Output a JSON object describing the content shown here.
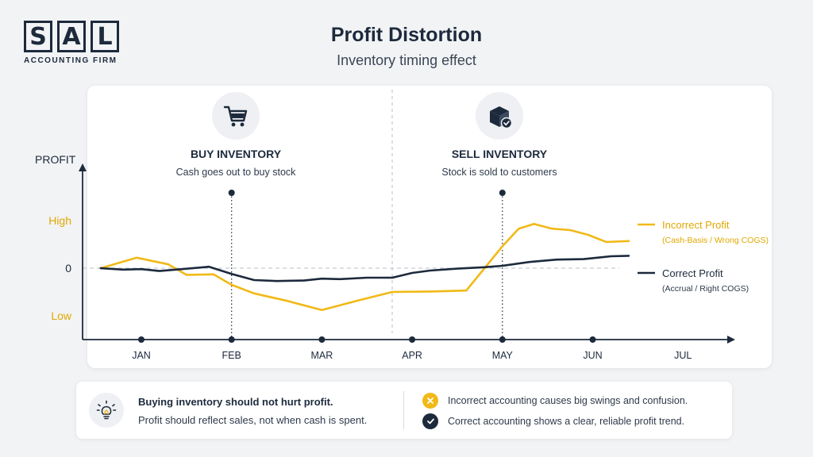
{
  "brand": {
    "letters": [
      "S",
      "A",
      "L"
    ],
    "subtitle": "ACCOUNTING FIRM"
  },
  "header": {
    "title": "Profit Distortion",
    "subtitle": "Inventory timing effect"
  },
  "colors": {
    "incorrect": "#f1b917",
    "correct": "#1c2a3c",
    "navy": "#1c2a3c"
  },
  "chart_data": {
    "type": "line",
    "ylabel": "PROFIT",
    "y_tick_labels": [
      "High",
      "0",
      "Low"
    ],
    "y_tick_values": [
      1,
      0,
      -1
    ],
    "ylim": [
      -1.2,
      1.6
    ],
    "xlim": [
      0.55,
      7.6
    ],
    "categories": [
      "JAN",
      "FEB",
      "MAR",
      "APR",
      "MAY",
      "JUN",
      "JUL"
    ],
    "category_x": [
      1,
      2,
      3,
      4,
      5,
      6,
      7
    ],
    "series": [
      {
        "name": "Incorrect Profit",
        "sublabel": "(Cash-Basis / Wrong COGS)",
        "color": "#f1b917",
        "x": [
          0.55,
          0.95,
          1.3,
          1.5,
          1.8,
          2.0,
          2.25,
          2.6,
          3.0,
          3.4,
          3.78,
          4.2,
          4.6,
          5.0,
          5.18,
          5.35,
          5.55,
          5.75,
          5.95,
          6.15,
          6.4
        ],
        "y": [
          0,
          0.22,
          0.08,
          -0.14,
          -0.13,
          -0.35,
          -0.53,
          -0.68,
          -0.88,
          -0.68,
          -0.5,
          -0.49,
          -0.47,
          0.46,
          0.83,
          0.93,
          0.83,
          0.8,
          0.7,
          0.55,
          0.57
        ]
      },
      {
        "name": "Correct Profit",
        "sublabel": "(Accrual / Right COGS)",
        "color": "#1c2a3c",
        "x": [
          0.55,
          0.8,
          1.0,
          1.2,
          1.45,
          1.75,
          2.0,
          2.25,
          2.5,
          2.8,
          3.0,
          3.2,
          3.5,
          3.78,
          4.0,
          4.2,
          4.5,
          4.8,
          5.0,
          5.3,
          5.6,
          5.9,
          6.2,
          6.4
        ],
        "y": [
          0,
          -0.03,
          -0.02,
          -0.06,
          -0.02,
          0.03,
          -0.12,
          -0.25,
          -0.27,
          -0.26,
          -0.22,
          -0.23,
          -0.2,
          -0.2,
          -0.1,
          -0.05,
          -0.01,
          0.02,
          0.05,
          0.13,
          0.18,
          0.19,
          0.25,
          0.26
        ]
      }
    ],
    "annotations": [
      {
        "x": 2.0,
        "title": "BUY INVENTORY",
        "desc": "Cash goes out to buy stock",
        "icon": "shopping-cart-icon"
      },
      {
        "x": 5.0,
        "title": "SELL INVENTORY",
        "desc": "Stock is sold to customers",
        "icon": "box-check-icon"
      }
    ],
    "legend": "right",
    "grid": false
  },
  "notes": {
    "title": "Buying inventory should not hurt profit.",
    "body": "Profit should reflect sales, not when cash is spent.",
    "points": [
      {
        "text": "Incorrect accounting causes big swings and confusion.",
        "icon": "x-icon"
      },
      {
        "text": "Correct accounting shows a clear, reliable profit trend.",
        "icon": "check-icon"
      }
    ]
  }
}
